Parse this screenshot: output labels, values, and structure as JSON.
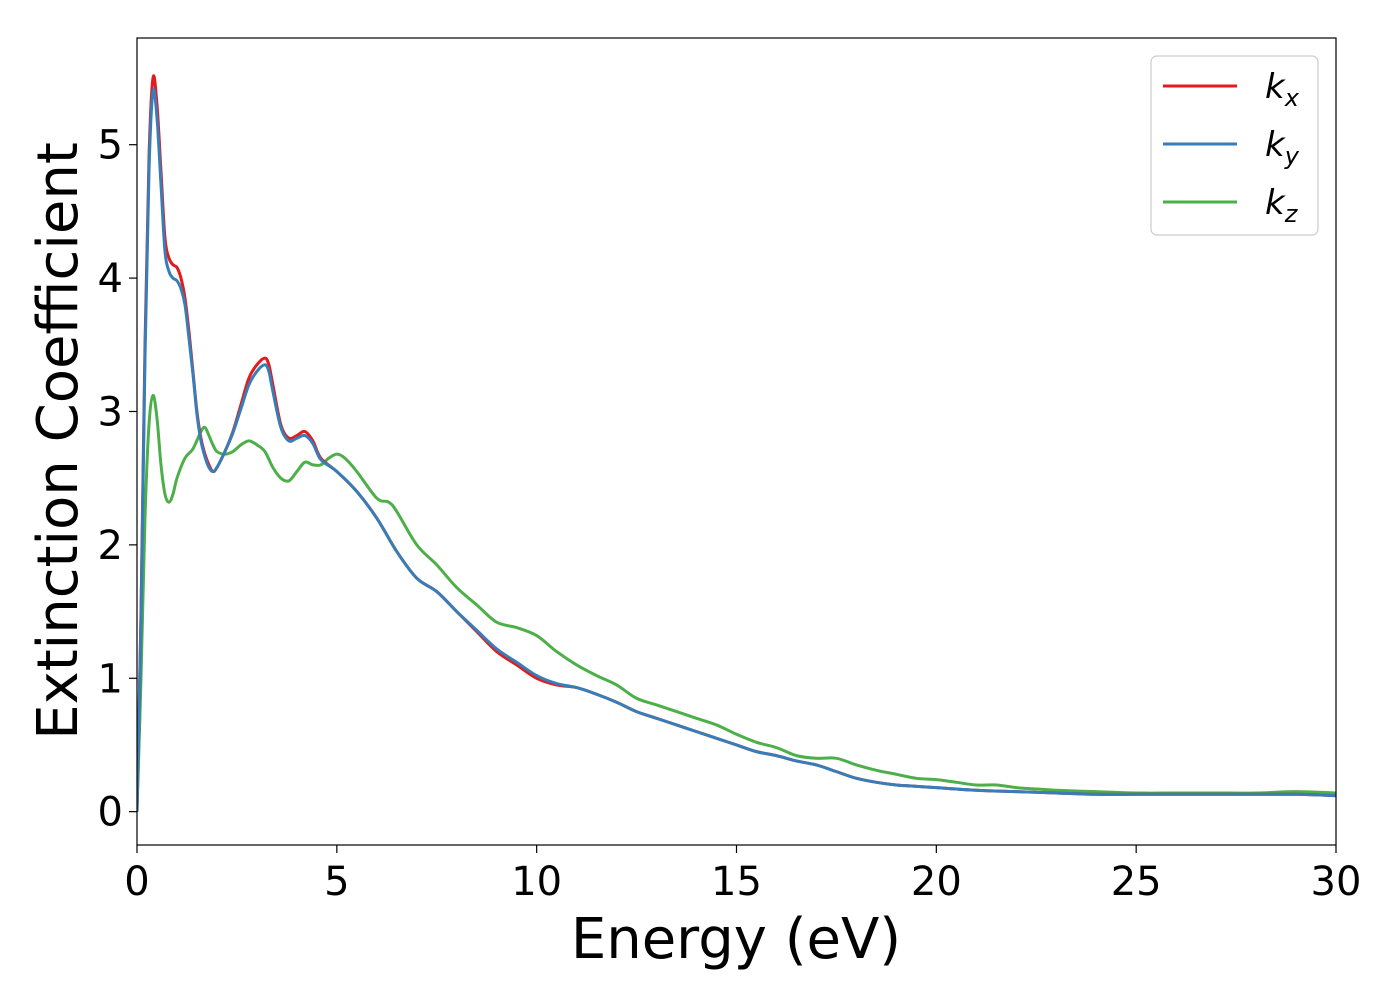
{
  "chart_data": {
    "type": "line",
    "title": "",
    "xlabel": "Energy (eV)",
    "ylabel": "Extinction Coefficient",
    "xlim": [
      0,
      30
    ],
    "ylim": [
      -0.25,
      5.8
    ],
    "xticks": [
      0,
      5,
      10,
      15,
      20,
      25,
      30
    ],
    "yticks": [
      0,
      1,
      2,
      3,
      4,
      5
    ],
    "grid": false,
    "legend_position": "top-right",
    "series": [
      {
        "name": "k_x",
        "label_base": "k",
        "label_sub": "x",
        "color": "#e41a1c",
        "x": [
          0,
          0.1,
          0.2,
          0.3,
          0.4,
          0.5,
          0.6,
          0.7,
          0.8,
          0.9,
          1.0,
          1.1,
          1.2,
          1.3,
          1.4,
          1.5,
          1.6,
          1.7,
          1.8,
          1.9,
          2.0,
          2.2,
          2.4,
          2.6,
          2.8,
          3.0,
          3.2,
          3.3,
          3.4,
          3.6,
          3.8,
          4.0,
          4.2,
          4.4,
          4.6,
          5.0,
          5.5,
          6.0,
          6.5,
          7.0,
          7.5,
          8.0,
          8.5,
          9.0,
          9.5,
          10.0,
          10.5,
          11.0,
          11.5,
          12.0,
          12.5,
          13.0,
          13.5,
          14.0,
          14.5,
          15.0,
          15.5,
          16.0,
          16.5,
          17.0,
          17.5,
          18.0,
          18.5,
          19.0,
          19.5,
          20.0,
          21.0,
          22.0,
          23.0,
          24.0,
          25.0,
          26.0,
          27.0,
          28.0,
          29.0,
          30.0
        ],
        "y": [
          0,
          1.5,
          3.5,
          4.9,
          5.5,
          5.3,
          4.8,
          4.3,
          4.15,
          4.1,
          4.08,
          4.0,
          3.85,
          3.6,
          3.3,
          3.0,
          2.8,
          2.68,
          2.6,
          2.55,
          2.58,
          2.7,
          2.85,
          3.05,
          3.25,
          3.35,
          3.4,
          3.35,
          3.2,
          2.9,
          2.8,
          2.82,
          2.85,
          2.78,
          2.65,
          2.55,
          2.4,
          2.2,
          1.95,
          1.75,
          1.65,
          1.5,
          1.35,
          1.2,
          1.1,
          1.0,
          0.95,
          0.93,
          0.88,
          0.82,
          0.75,
          0.7,
          0.65,
          0.6,
          0.55,
          0.5,
          0.45,
          0.42,
          0.38,
          0.35,
          0.3,
          0.25,
          0.22,
          0.2,
          0.19,
          0.18,
          0.16,
          0.15,
          0.14,
          0.13,
          0.13,
          0.13,
          0.13,
          0.13,
          0.13,
          0.12
        ]
      },
      {
        "name": "k_y",
        "label_base": "k",
        "label_sub": "y",
        "color": "#377eb8",
        "x": [
          0,
          0.1,
          0.2,
          0.3,
          0.4,
          0.5,
          0.6,
          0.7,
          0.8,
          0.9,
          1.0,
          1.1,
          1.2,
          1.3,
          1.4,
          1.5,
          1.6,
          1.7,
          1.8,
          1.9,
          2.0,
          2.2,
          2.4,
          2.6,
          2.8,
          3.0,
          3.2,
          3.3,
          3.4,
          3.6,
          3.8,
          4.0,
          4.2,
          4.4,
          4.6,
          5.0,
          5.5,
          6.0,
          6.5,
          7.0,
          7.5,
          8.0,
          8.5,
          9.0,
          9.5,
          10.0,
          10.5,
          11.0,
          11.5,
          12.0,
          12.5,
          13.0,
          13.5,
          14.0,
          14.5,
          15.0,
          15.5,
          16.0,
          16.5,
          17.0,
          17.5,
          18.0,
          18.5,
          19.0,
          19.5,
          20.0,
          21.0,
          22.0,
          23.0,
          24.0,
          25.0,
          26.0,
          27.0,
          28.0,
          29.0,
          30.0
        ],
        "y": [
          0,
          1.45,
          3.4,
          4.8,
          5.4,
          5.2,
          4.7,
          4.2,
          4.05,
          4.0,
          3.98,
          3.92,
          3.8,
          3.55,
          3.28,
          2.98,
          2.78,
          2.66,
          2.58,
          2.55,
          2.58,
          2.7,
          2.84,
          3.02,
          3.2,
          3.3,
          3.35,
          3.3,
          3.15,
          2.88,
          2.78,
          2.8,
          2.82,
          2.76,
          2.64,
          2.55,
          2.4,
          2.2,
          1.95,
          1.75,
          1.65,
          1.5,
          1.36,
          1.22,
          1.12,
          1.02,
          0.96,
          0.93,
          0.88,
          0.82,
          0.75,
          0.7,
          0.65,
          0.6,
          0.55,
          0.5,
          0.45,
          0.42,
          0.38,
          0.35,
          0.3,
          0.25,
          0.22,
          0.2,
          0.19,
          0.18,
          0.16,
          0.15,
          0.14,
          0.13,
          0.13,
          0.13,
          0.13,
          0.13,
          0.13,
          0.12
        ]
      },
      {
        "name": "k_z",
        "label_base": "k",
        "label_sub": "z",
        "color": "#4daf4a",
        "x": [
          0,
          0.1,
          0.2,
          0.3,
          0.4,
          0.5,
          0.6,
          0.7,
          0.8,
          0.9,
          1.0,
          1.2,
          1.4,
          1.6,
          1.7,
          1.8,
          1.9,
          2.0,
          2.2,
          2.4,
          2.6,
          2.8,
          3.0,
          3.2,
          3.4,
          3.6,
          3.8,
          4.0,
          4.2,
          4.4,
          4.6,
          4.8,
          5.0,
          5.2,
          5.5,
          6.0,
          6.3,
          6.5,
          7.0,
          7.5,
          8.0,
          8.5,
          9.0,
          9.5,
          10.0,
          10.5,
          11.0,
          11.5,
          12.0,
          12.5,
          13.0,
          13.5,
          14.0,
          14.5,
          15.0,
          15.5,
          16.0,
          16.5,
          17.0,
          17.5,
          18.0,
          18.5,
          19.0,
          19.5,
          20.0,
          20.5,
          21.0,
          21.5,
          22.0,
          22.5,
          23.0,
          24.0,
          25.0,
          26.0,
          27.0,
          28.0,
          29.0,
          30.0
        ],
        "y": [
          0,
          1.0,
          2.2,
          2.9,
          3.12,
          2.95,
          2.6,
          2.38,
          2.32,
          2.38,
          2.5,
          2.65,
          2.72,
          2.85,
          2.88,
          2.82,
          2.75,
          2.7,
          2.68,
          2.7,
          2.75,
          2.78,
          2.75,
          2.7,
          2.58,
          2.5,
          2.48,
          2.55,
          2.62,
          2.6,
          2.6,
          2.65,
          2.68,
          2.65,
          2.55,
          2.35,
          2.32,
          2.25,
          2.0,
          1.85,
          1.68,
          1.55,
          1.42,
          1.38,
          1.32,
          1.2,
          1.1,
          1.02,
          0.95,
          0.85,
          0.8,
          0.75,
          0.7,
          0.65,
          0.58,
          0.52,
          0.48,
          0.42,
          0.4,
          0.4,
          0.35,
          0.31,
          0.28,
          0.25,
          0.24,
          0.22,
          0.2,
          0.2,
          0.18,
          0.17,
          0.16,
          0.15,
          0.14,
          0.14,
          0.14,
          0.14,
          0.15,
          0.14
        ]
      }
    ]
  }
}
